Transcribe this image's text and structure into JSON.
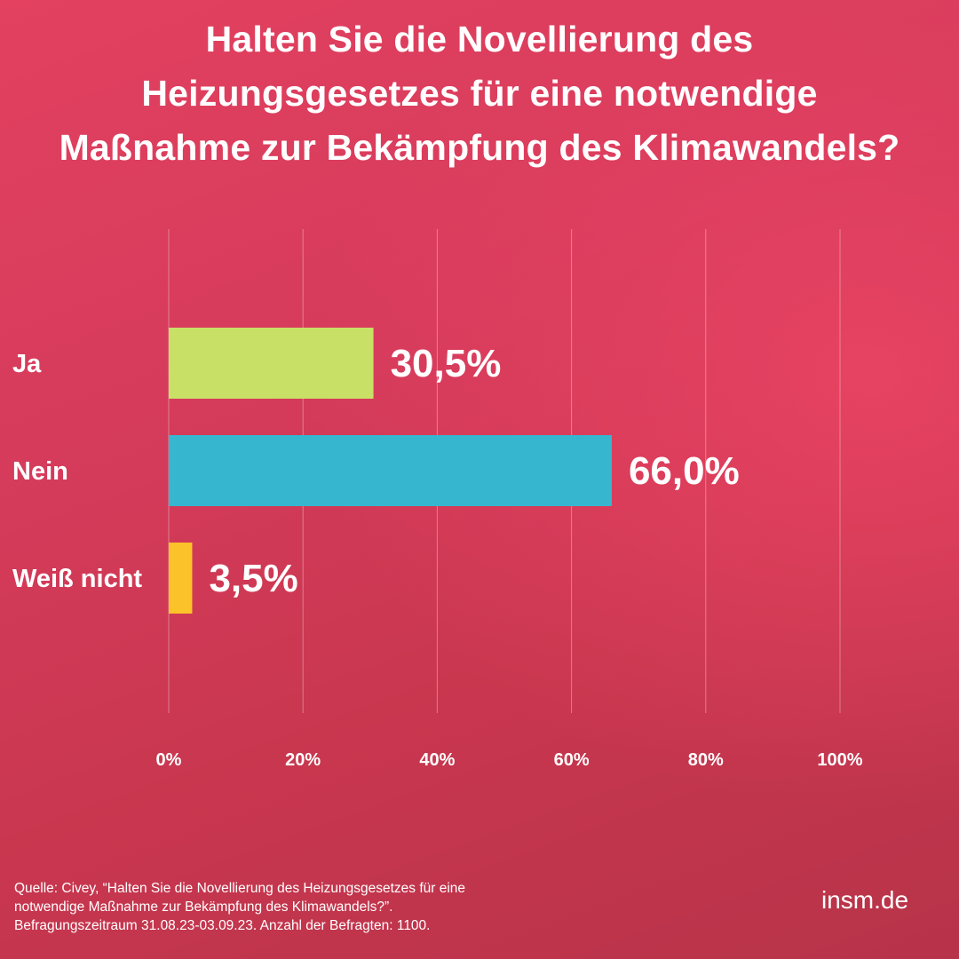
{
  "title_lines": [
    "Halten Sie die Novellierung des",
    "Heizungsgesetzes für eine notwendige",
    "Maßnahme zur Bekämpfung des Klimawandels?"
  ],
  "chart_data": {
    "type": "bar",
    "orientation": "horizontal",
    "categories": [
      "Ja",
      "Nein",
      "Weiß nicht"
    ],
    "values": [
      30.5,
      66.0,
      3.5
    ],
    "value_labels": [
      "30,5%",
      "66,0%",
      "3,5%"
    ],
    "colors": [
      "#c8e066",
      "#36b6cf",
      "#fcc22a"
    ],
    "xlim": [
      0,
      100
    ],
    "ticks": [
      0,
      20,
      40,
      60,
      80,
      100
    ],
    "tick_labels": [
      "0%",
      "20%",
      "40%",
      "60%",
      "80%",
      "100%"
    ],
    "grid": true
  },
  "source_lines": [
    "Quelle: Civey, “Halten Sie die Novellierung des Heizungsgesetzes für eine",
    "notwendige Maßnahme zur Bekämpfung des Klimawandels?”.",
    "Befragungszeitraum 31.08.23-03.09.23. Anzahl der Befragten: 1100."
  ],
  "brand": "insm.de"
}
